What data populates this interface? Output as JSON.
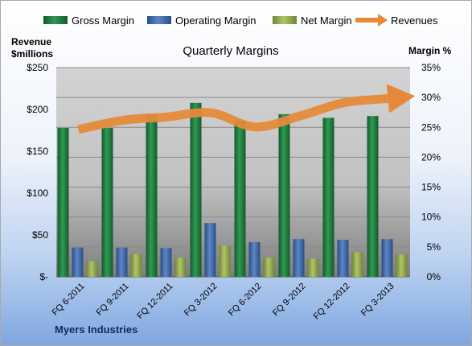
{
  "chart_data": {
    "type": "bar",
    "title": "Quarterly Margins",
    "subtitle": "Myers Industries",
    "ylabel_left": "Revenue\n$millions",
    "ylabel_right": "Margin %",
    "categories": [
      "FQ 6-2011",
      "FQ 9-2011",
      "FQ 12-2011",
      "FQ 3-2012",
      "FQ 6-2012",
      "FQ 9-2012",
      "FQ 12-2012",
      "FQ 3-2013"
    ],
    "ylim_left": [
      0,
      250
    ],
    "ylim_right": [
      0,
      35
    ],
    "yticks_left": [
      "$-",
      "$50",
      "$100",
      "$150",
      "$200",
      "$250"
    ],
    "yticks_right": [
      "0%",
      "5%",
      "10%",
      "15%",
      "20%",
      "25%",
      "30%",
      "35%"
    ],
    "series": [
      {
        "name": "Gross Margin",
        "type": "bar",
        "axis": "right",
        "color": "#1E7A3E",
        "values": [
          24.9,
          24.9,
          27.2,
          29.1,
          26.1,
          27.2,
          26.6,
          26.9
        ]
      },
      {
        "name": "Operating Margin",
        "type": "bar",
        "axis": "right",
        "color": "#3F68A8",
        "values": [
          4.9,
          4.9,
          4.8,
          9.0,
          5.8,
          6.3,
          6.2,
          6.3
        ]
      },
      {
        "name": "Net Margin",
        "type": "bar",
        "axis": "right",
        "color": "#8FA64A",
        "values": [
          2.6,
          3.8,
          3.2,
          5.2,
          3.2,
          3.0,
          4.1,
          3.7
        ]
      },
      {
        "name": "Revenues",
        "type": "line",
        "axis": "left",
        "color": "#E58A3A",
        "values": [
          176,
          187,
          191,
          196,
          179,
          192,
          208,
          213
        ]
      }
    ],
    "grid": true,
    "legend": "top"
  }
}
